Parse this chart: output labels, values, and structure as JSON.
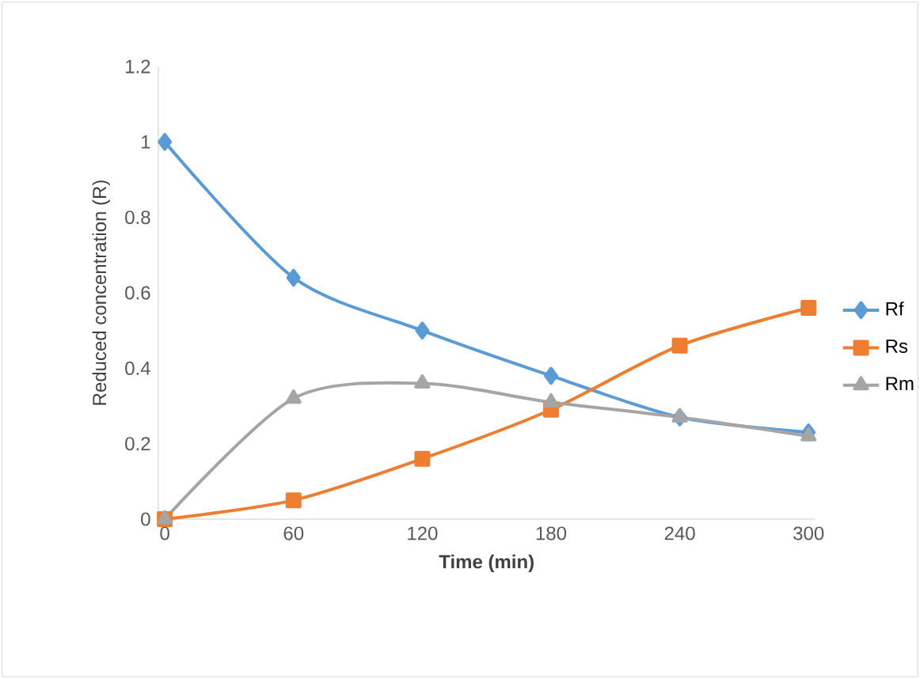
{
  "chart_data": {
    "type": "line",
    "xlabel": "Time (min)",
    "ylabel": "Reduced concentration (R)",
    "categories": [
      "0",
      "60",
      "120",
      "180",
      "240",
      "300"
    ],
    "series": [
      {
        "name": "Rf",
        "color": "#5b9bd5",
        "marker": "diamond",
        "values": [
          1,
          0.64,
          0.5,
          0.38,
          0.27,
          0.23
        ]
      },
      {
        "name": "Rs",
        "color": "#ed7d31",
        "marker": "square",
        "values": [
          0,
          0.05,
          0.16,
          0.29,
          0.46,
          0.56
        ]
      },
      {
        "name": "Rm",
        "color": "#a5a5a5",
        "marker": "triangle",
        "values": [
          0,
          0.32,
          0.36,
          0.31,
          0.27,
          0.22
        ]
      }
    ],
    "ylim": [
      0,
      1.2
    ],
    "yticks": [
      0,
      0.2,
      0.4,
      0.6,
      0.8,
      1,
      1.2
    ],
    "grid": false,
    "legend": "right",
    "line_style": "solid"
  }
}
